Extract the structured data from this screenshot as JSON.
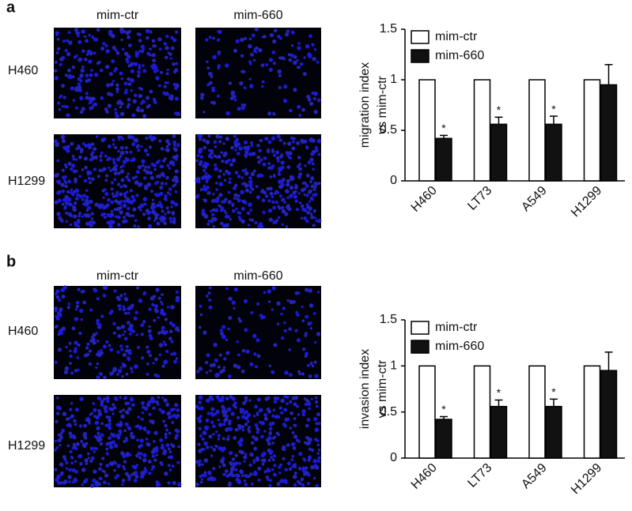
{
  "figure": {
    "panels": [
      {
        "label": "a",
        "columns": [
          "mim-ctr",
          "mim-660"
        ],
        "rows": [
          "H460",
          "H1299"
        ]
      },
      {
        "label": "b",
        "columns": [
          "mim-ctr",
          "mim-660"
        ],
        "rows": [
          "H460",
          "H1299"
        ]
      }
    ]
  },
  "chart_data": [
    {
      "type": "bar",
      "ylabel": [
        "migration index",
        "vs mim-ctr"
      ],
      "categories": [
        "H460",
        "LT73",
        "A549",
        "H1299"
      ],
      "series": [
        {
          "name": "mim-ctr",
          "color": "#ffffff",
          "values": [
            1,
            1,
            1,
            1
          ]
        },
        {
          "name": "mim-660",
          "color": "#111111",
          "values": [
            0.42,
            0.56,
            0.56,
            0.95
          ],
          "errors": [
            0.03,
            0.07,
            0.08,
            0.2
          ],
          "annotations": [
            "*",
            "*",
            "*",
            null
          ]
        }
      ],
      "ylim": [
        0,
        1.5
      ],
      "yticks": [
        0,
        0.5,
        1,
        1.5
      ],
      "legend": "upper left"
    },
    {
      "type": "bar",
      "ylabel": [
        "invasion index",
        "vs mim-ctr"
      ],
      "categories": [
        "H460",
        "LT73",
        "A549",
        "H1299"
      ],
      "series": [
        {
          "name": "mim-ctr",
          "color": "#ffffff",
          "values": [
            1,
            1,
            1,
            1
          ]
        },
        {
          "name": "mim-660",
          "color": "#111111",
          "values": [
            0.42,
            0.56,
            0.56,
            0.95
          ],
          "errors": [
            0.03,
            0.07,
            0.08,
            0.2
          ],
          "annotations": [
            "*",
            "*",
            "*",
            null
          ]
        }
      ],
      "ylim": [
        0,
        1.5
      ],
      "yticks": [
        0,
        0.5,
        1,
        1.5
      ],
      "legend": "upper left"
    }
  ]
}
